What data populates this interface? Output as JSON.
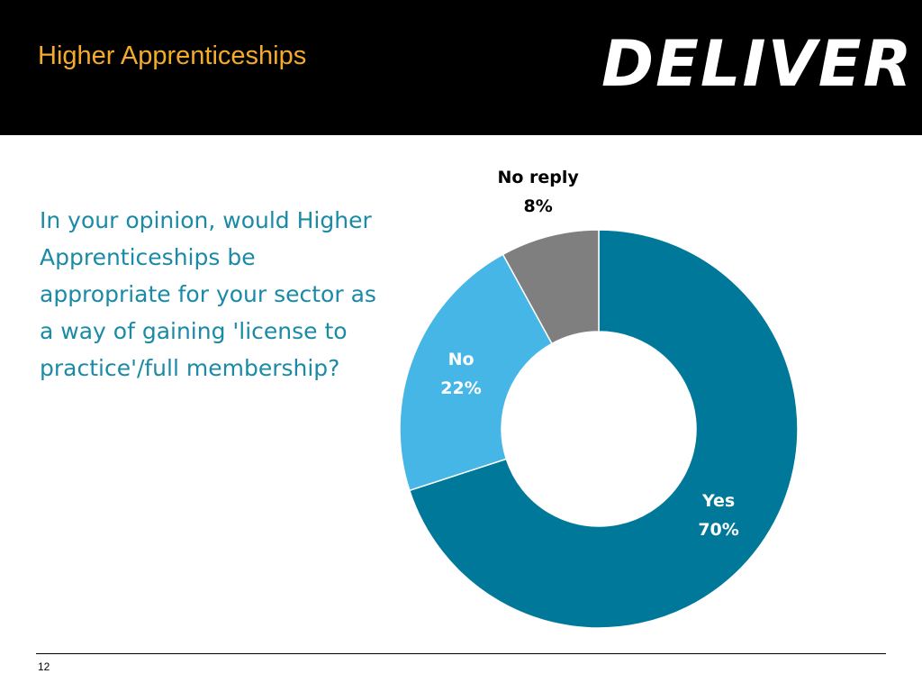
{
  "header": {
    "title": "Higher Apprenticeships",
    "logo": "DELIVER"
  },
  "question": "In your opinion, would Higher Apprenticeships be appropriate for your sector as a way of gaining 'license to practice'/full membership?",
  "footer": {
    "page_number": "12"
  },
  "chart_data": {
    "type": "donut",
    "categories": [
      "Yes",
      "No",
      "No reply"
    ],
    "values": [
      70,
      22,
      8
    ],
    "value_labels": [
      "70%",
      "22%",
      "8%"
    ],
    "colors": [
      "#00789a",
      "#46b6e6",
      "#7f7f7f"
    ]
  }
}
